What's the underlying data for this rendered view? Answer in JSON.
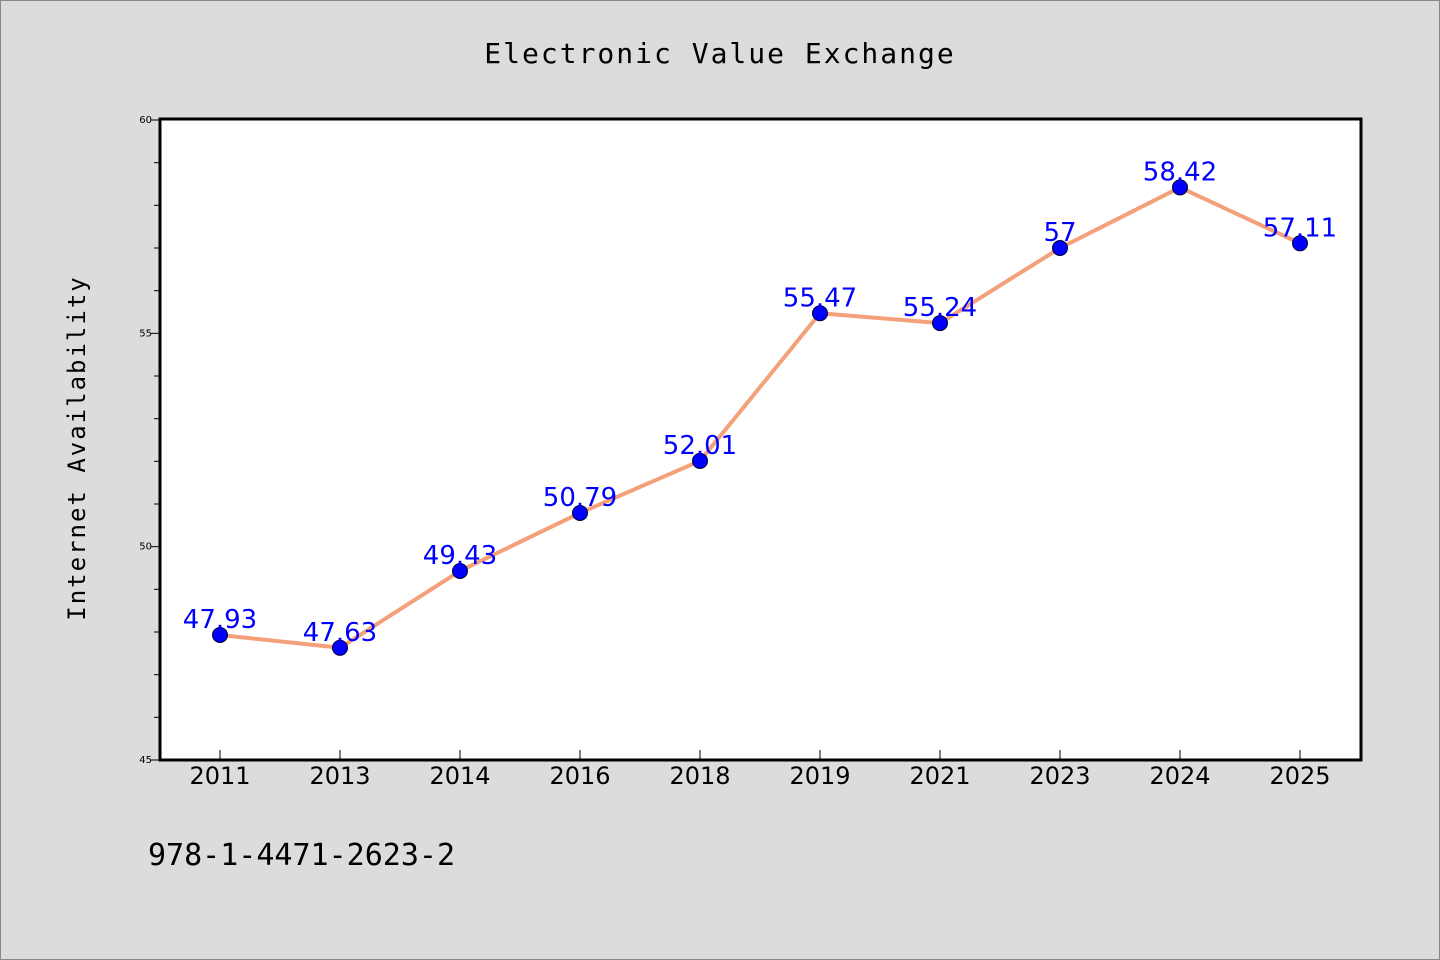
{
  "chart_data": {
    "type": "line",
    "title": "Electronic Value Exchange",
    "xlabel": "",
    "ylabel": "Internet Availability",
    "categories": [
      "2011",
      "2013",
      "2014",
      "2016",
      "2018",
      "2019",
      "2021",
      "2023",
      "2024",
      "2025"
    ],
    "series": [
      {
        "values": [
          47.93,
          47.63,
          49.43,
          50.79,
          52.01,
          55.47,
          55.24,
          57,
          58.42,
          57.11
        ],
        "labels": [
          "47.93",
          "47.63",
          "49.43",
          "50.79",
          "52.01",
          "55.47",
          "55.24",
          "57",
          "58.42",
          "57.11"
        ]
      }
    ],
    "ylim": [
      45,
      60
    ],
    "yticks": [
      "45",
      "50",
      "55",
      "60"
    ],
    "grid": false,
    "legend": "none",
    "colors": {
      "line": "#f4a07a",
      "marker": "#0000ff",
      "data_label": "#0000ff",
      "background": "#dcdcdc",
      "plot_area": "#ffffff"
    }
  },
  "footer": {
    "code": "978-1-4471-2623-2"
  }
}
